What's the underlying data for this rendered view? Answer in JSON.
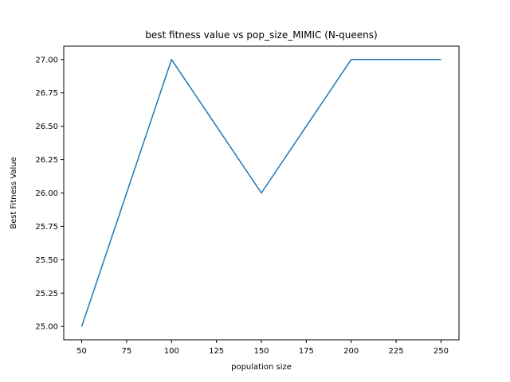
{
  "chart_data": {
    "type": "line",
    "title": "best fitness value vs pop_size_MIMIC (N-queens)",
    "xlabel": "population size",
    "ylabel": "Best Fitness Value",
    "x": [
      50,
      100,
      150,
      200,
      250
    ],
    "series": [
      {
        "values": [
          25.0,
          27.0,
          26.0,
          27.0,
          27.0
        ],
        "color": "#1f77b4"
      }
    ],
    "xlim": [
      40,
      260
    ],
    "ylim": [
      24.9,
      27.1
    ],
    "xticks": [
      50,
      75,
      100,
      125,
      150,
      175,
      200,
      225,
      250
    ],
    "xtick_labels": [
      "50",
      "75",
      "100",
      "125",
      "150",
      "175",
      "200",
      "225",
      "250"
    ],
    "yticks": [
      25.0,
      25.25,
      25.5,
      25.75,
      26.0,
      26.25,
      26.5,
      26.75,
      27.0
    ],
    "ytick_labels": [
      "25.00",
      "25.25",
      "25.50",
      "25.75",
      "26.00",
      "26.25",
      "26.50",
      "26.75",
      "27.00"
    ],
    "grid": false,
    "legend": false
  }
}
